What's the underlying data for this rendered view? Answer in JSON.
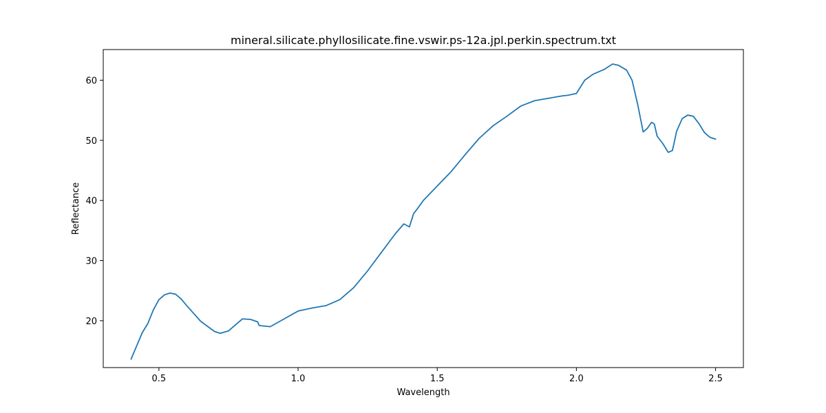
{
  "chart_data": {
    "type": "line",
    "title": "mineral.silicate.phyllosilicate.fine.vswir.ps-12a.jpl.perkin.spectrum.txt",
    "xlabel": "Wavelength",
    "ylabel": "Reflectance",
    "xlim": [
      0.3,
      2.6
    ],
    "ylim": [
      12.2,
      65.1
    ],
    "xticks": [
      0.5,
      1.0,
      1.5,
      2.0,
      2.5
    ],
    "xtick_labels": [
      "0.5",
      "1.0",
      "1.5",
      "2.0",
      "2.5"
    ],
    "yticks": [
      20,
      30,
      40,
      50,
      60
    ],
    "ytick_labels": [
      "20",
      "30",
      "40",
      "50",
      "60"
    ],
    "grid": false,
    "series": [
      {
        "color": "#1f77b4",
        "x": [
          0.4,
          0.42,
          0.44,
          0.46,
          0.48,
          0.5,
          0.52,
          0.54,
          0.56,
          0.58,
          0.6,
          0.65,
          0.7,
          0.72,
          0.75,
          0.8,
          0.83,
          0.855,
          0.86,
          0.9,
          0.95,
          1.0,
          1.05,
          1.1,
          1.15,
          1.2,
          1.25,
          1.3,
          1.35,
          1.38,
          1.4,
          1.415,
          1.43,
          1.45,
          1.5,
          1.55,
          1.6,
          1.65,
          1.7,
          1.75,
          1.8,
          1.85,
          1.9,
          1.95,
          1.97,
          2.0,
          2.03,
          2.06,
          2.1,
          2.13,
          2.15,
          2.18,
          2.2,
          2.22,
          2.24,
          2.255,
          2.27,
          2.28,
          2.29,
          2.31,
          2.33,
          2.345,
          2.36,
          2.38,
          2.4,
          2.42,
          2.44,
          2.46,
          2.48,
          2.5
        ],
        "y": [
          13.6,
          15.8,
          18.0,
          19.5,
          21.8,
          23.5,
          24.3,
          24.6,
          24.4,
          23.6,
          22.5,
          19.9,
          18.2,
          17.9,
          18.3,
          20.3,
          20.2,
          19.8,
          19.2,
          19.0,
          20.3,
          21.6,
          22.1,
          22.5,
          23.5,
          25.5,
          28.3,
          31.4,
          34.5,
          36.1,
          35.6,
          37.8,
          38.7,
          40.0,
          42.4,
          44.8,
          47.6,
          50.3,
          52.4,
          54.0,
          55.7,
          56.6,
          57.0,
          57.4,
          57.5,
          57.8,
          60.0,
          61.0,
          61.8,
          62.7,
          62.5,
          61.7,
          60.0,
          56.0,
          51.4,
          52.0,
          53.0,
          52.7,
          50.7,
          49.5,
          48.0,
          48.3,
          51.5,
          53.6,
          54.2,
          54.0,
          52.8,
          51.3,
          50.5,
          50.2
        ]
      }
    ]
  }
}
